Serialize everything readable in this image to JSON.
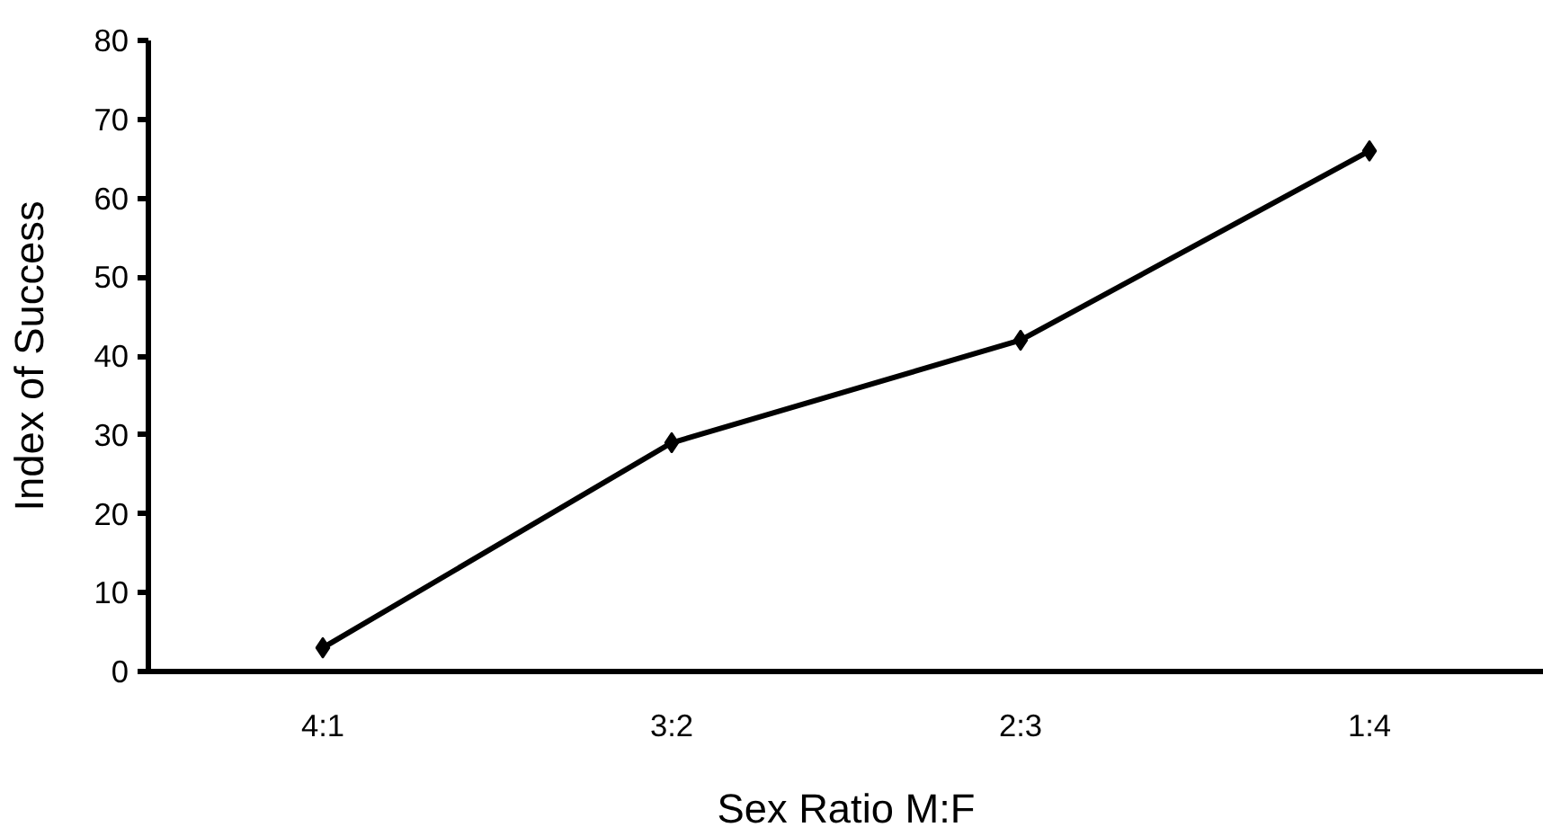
{
  "chart_data": {
    "type": "line",
    "xlabel": "Sex Ratio M:F",
    "ylabel": "Index of Success",
    "categories": [
      "4:1",
      "3:2",
      "2:3",
      "1:4"
    ],
    "series": [
      {
        "color": "#000000",
        "values": [
          3,
          29,
          42,
          66
        ]
      }
    ],
    "ylim": [
      0,
      80
    ],
    "yticks": [
      0,
      10,
      20,
      30,
      40,
      50,
      60,
      70,
      80
    ],
    "marker": "diamond",
    "line_style": "solid",
    "grid": false
  }
}
